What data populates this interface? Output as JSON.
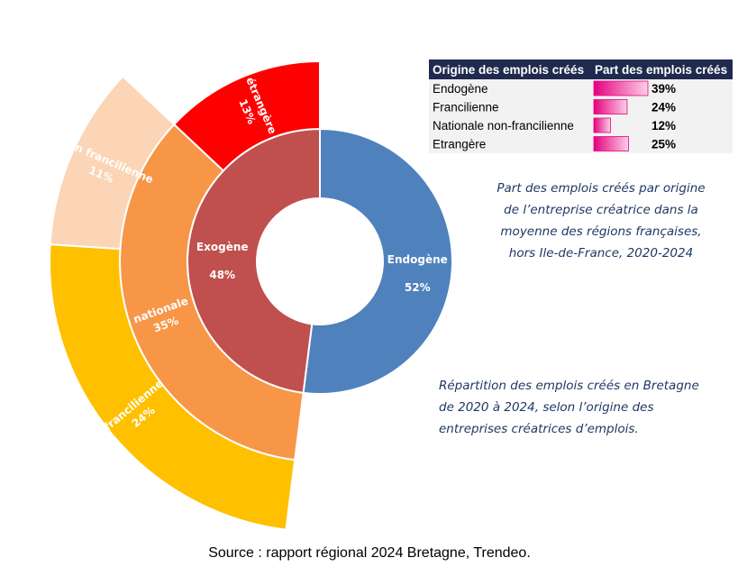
{
  "chart_data": {
    "type": "sunburst",
    "children": [
      {
        "name": "Endogène",
        "value": 52,
        "value_label": "52%",
        "color": "#4f81bd"
      },
      {
        "name": "Exogène",
        "value": 48,
        "value_label": "48%",
        "color": "#c0504d",
        "children": [
          {
            "name": "nationale",
            "value": 35,
            "value_label": "35%",
            "color": "#f79646",
            "children": [
              {
                "name": "francilienne",
                "value": 24,
                "value_label": "24%",
                "color": "#ffc000"
              },
              {
                "name": "non francilienne",
                "value": 11,
                "value_label": "11%",
                "color": "#fbd5b5"
              }
            ]
          },
          {
            "name": "étrangère",
            "value": 13,
            "value_label": "13%",
            "color": "#ff0000"
          }
        ]
      }
    ]
  },
  "table": {
    "columns": [
      "Origine des emplois créés",
      "Part des emplois créés"
    ],
    "rows": [
      {
        "name": "Endogène",
        "value": 39,
        "label": "39%"
      },
      {
        "name": "Francilienne",
        "value": 24,
        "label": "24%"
      },
      {
        "name": "Nationale non-francilienne",
        "value": 12,
        "label": "12%"
      },
      {
        "name": "Etrangère",
        "value": 25,
        "label": "25%"
      }
    ]
  },
  "caption_national": [
    "Part des emplois créés par origine",
    "de l’entreprise créatrice dans la",
    "moyenne des régions françaises,",
    "hors Ile-de-France, 2020-2024"
  ],
  "caption_bretagne": [
    "Répartition des emplois créés en Bretagne",
    "de 2020 à 2024, selon l’origine des",
    "entreprises créatrices d’emplois."
  ],
  "source": "Source :  rapport régional 2024 Bretagne, Trendeo."
}
